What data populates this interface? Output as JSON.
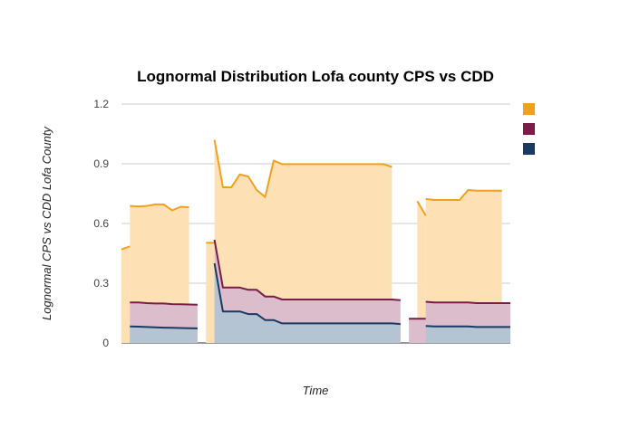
{
  "chart_data": {
    "type": "area",
    "title": "Lognormal Distribution Lofa county CPS vs CDD",
    "xlabel": "Time",
    "ylabel": "Lognormal CPS vs CDD Lofa County",
    "ylim": [
      0,
      1.2
    ],
    "yticks": [
      "0",
      "0.3",
      "0.6",
      "0.9",
      "1.2"
    ],
    "grid": true,
    "legend": "top-right",
    "series": [
      {
        "name": "",
        "color": "#f2a01e",
        "fill": "#fde0b3",
        "segments": [
          [
            [
              0,
              0.47
            ],
            [
              1,
              0.485
            ]
          ],
          [
            [
              1,
              0.688
            ],
            [
              2,
              0.686
            ],
            [
              3,
              0.688
            ],
            [
              4,
              0.696
            ],
            [
              5,
              0.696
            ],
            [
              6,
              0.666
            ],
            [
              7,
              0.684
            ],
            [
              8,
              0.682
            ]
          ],
          [
            [
              10,
              0.503
            ],
            [
              11,
              0.503
            ]
          ],
          [
            [
              11,
              1.02
            ],
            [
              12,
              0.782
            ],
            [
              13,
              0.782
            ],
            [
              14,
              0.847
            ],
            [
              15,
              0.836
            ],
            [
              16,
              0.768
            ],
            [
              17,
              0.733
            ],
            [
              18,
              0.916
            ],
            [
              19,
              0.898
            ],
            [
              20,
              0.898
            ],
            [
              21,
              0.898
            ],
            [
              22,
              0.898
            ],
            [
              23,
              0.898
            ],
            [
              24,
              0.898
            ],
            [
              25,
              0.898
            ],
            [
              26,
              0.898
            ],
            [
              27,
              0.898
            ],
            [
              28,
              0.898
            ],
            [
              29,
              0.898
            ],
            [
              30,
              0.898
            ],
            [
              31,
              0.898
            ],
            [
              32,
              0.884
            ]
          ],
          [
            [
              35,
              0.712
            ],
            [
              36,
              0.64
            ]
          ],
          [
            [
              36,
              0.723
            ],
            [
              37,
              0.718
            ],
            [
              38,
              0.718
            ],
            [
              39,
              0.718
            ],
            [
              40,
              0.718
            ],
            [
              41,
              0.768
            ],
            [
              42,
              0.765
            ],
            [
              43,
              0.765
            ],
            [
              44,
              0.765
            ],
            [
              45,
              0.765
            ]
          ]
        ]
      },
      {
        "name": "",
        "color": "#7b1d49",
        "fill": "#dbbdcb",
        "segments": [
          [
            [
              1,
              0.203
            ],
            [
              2,
              0.203
            ],
            [
              3,
              0.2
            ],
            [
              4,
              0.198
            ],
            [
              5,
              0.198
            ],
            [
              6,
              0.195
            ],
            [
              7,
              0.194
            ],
            [
              8,
              0.193
            ],
            [
              9,
              0.192
            ]
          ],
          [
            [
              11,
              0.518
            ],
            [
              12,
              0.278
            ],
            [
              13,
              0.278
            ],
            [
              14,
              0.278
            ],
            [
              15,
              0.267
            ],
            [
              16,
              0.267
            ],
            [
              17,
              0.233
            ],
            [
              18,
              0.233
            ],
            [
              19,
              0.218
            ],
            [
              20,
              0.218
            ],
            [
              21,
              0.218
            ],
            [
              22,
              0.218
            ],
            [
              23,
              0.218
            ],
            [
              24,
              0.218
            ],
            [
              25,
              0.218
            ],
            [
              26,
              0.218
            ],
            [
              27,
              0.218
            ],
            [
              28,
              0.218
            ],
            [
              29,
              0.218
            ],
            [
              30,
              0.218
            ],
            [
              31,
              0.218
            ],
            [
              32,
              0.218
            ],
            [
              33,
              0.215
            ]
          ],
          [
            [
              34,
              0.122
            ],
            [
              35,
              0.122
            ],
            [
              36,
              0.122
            ]
          ],
          [
            [
              36,
              0.207
            ],
            [
              37,
              0.203
            ],
            [
              38,
              0.203
            ],
            [
              39,
              0.203
            ],
            [
              40,
              0.203
            ],
            [
              41,
              0.203
            ],
            [
              42,
              0.2
            ],
            [
              43,
              0.2
            ],
            [
              44,
              0.2
            ],
            [
              45,
              0.2
            ],
            [
              46,
              0.2
            ]
          ]
        ]
      },
      {
        "name": "",
        "color": "#1a3a63",
        "fill": "#b5c4d3",
        "segments": [
          [
            [
              1,
              0.083
            ],
            [
              2,
              0.082
            ],
            [
              3,
              0.08
            ],
            [
              4,
              0.078
            ],
            [
              5,
              0.077
            ],
            [
              6,
              0.076
            ],
            [
              7,
              0.075
            ],
            [
              8,
              0.074
            ],
            [
              9,
              0.073
            ]
          ],
          [
            [
              11,
              0.4
            ],
            [
              12,
              0.158
            ],
            [
              13,
              0.158
            ],
            [
              14,
              0.158
            ],
            [
              15,
              0.145
            ],
            [
              16,
              0.145
            ],
            [
              17,
              0.115
            ],
            [
              18,
              0.115
            ],
            [
              19,
              0.098
            ],
            [
              20,
              0.098
            ],
            [
              21,
              0.098
            ],
            [
              22,
              0.098
            ],
            [
              23,
              0.098
            ],
            [
              24,
              0.098
            ],
            [
              25,
              0.098
            ],
            [
              26,
              0.098
            ],
            [
              27,
              0.098
            ],
            [
              28,
              0.098
            ],
            [
              29,
              0.098
            ],
            [
              30,
              0.098
            ],
            [
              31,
              0.098
            ],
            [
              32,
              0.098
            ],
            [
              33,
              0.095
            ]
          ],
          [
            [
              36,
              0.085
            ],
            [
              37,
              0.083
            ],
            [
              38,
              0.083
            ],
            [
              39,
              0.083
            ],
            [
              40,
              0.083
            ],
            [
              41,
              0.083
            ],
            [
              42,
              0.08
            ],
            [
              43,
              0.08
            ],
            [
              44,
              0.08
            ],
            [
              45,
              0.08
            ],
            [
              46,
              0.08
            ]
          ]
        ]
      }
    ],
    "x_range": [
      0,
      46
    ]
  }
}
